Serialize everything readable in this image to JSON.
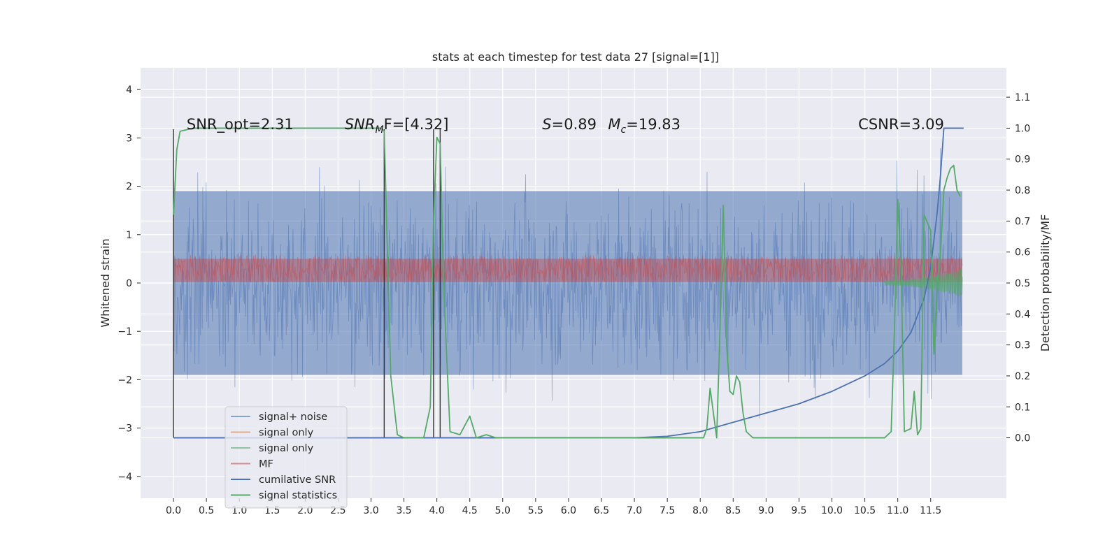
{
  "chart_data": {
    "type": "line",
    "title": "stats at each timestep for test data 27 [signal=[1]]",
    "ylabel": "Whitened strain",
    "ylabel_right": "Detection probability/MF",
    "xlim": [
      -0.5,
      12.65
    ],
    "ylim": [
      -4.45,
      4.45
    ],
    "ylim_right": [
      -0.195,
      1.195
    ],
    "x_ticks": [
      "0.0",
      "0.5",
      "1.0",
      "1.5",
      "2.0",
      "2.5",
      "3.0",
      "3.5",
      "4.0",
      "4.5",
      "5.0",
      "5.5",
      "6.0",
      "6.5",
      "7.0",
      "7.5",
      "8.0",
      "8.5",
      "9.0",
      "9.5",
      "10.0",
      "10.5",
      "11.0",
      "11.5"
    ],
    "y_ticks": [
      "4",
      "3",
      "2",
      "1",
      "0",
      "−1",
      "−2",
      "−3",
      "−4"
    ],
    "y_ticks_right": [
      "1.1",
      "1.0",
      "0.9",
      "0.8",
      "0.7",
      "0.6",
      "0.5",
      "0.4",
      "0.3",
      "0.2",
      "0.1",
      "0.0"
    ],
    "grid": true,
    "legend_position": "lower-left",
    "annotations": [
      {
        "text": "SNR_opt=2.31",
        "x": 0.2,
        "y": 3.18
      },
      {
        "text": "SNR",
        "sub": "M",
        "tail": "F=[4.32]",
        "italic": true,
        "x": 2.6,
        "y": 3.18
      },
      {
        "text": "S",
        "tail": "=0.89",
        "italic": true,
        "x": 5.6,
        "y": 3.18
      },
      {
        "text": "M",
        "sub": "c",
        "tail": "=19.83",
        "italic": true,
        "x": 6.6,
        "y": 3.18
      },
      {
        "text": "CSNR=3.09",
        "x": 10.4,
        "y": 3.18
      }
    ],
    "vertical_markers": [
      0.0,
      3.2,
      3.95,
      4.05
    ],
    "series": [
      {
        "name": "signal+ noise",
        "color": "#4c72b0",
        "axis": "left",
        "kind": "noise-band",
        "approx_envelope": [
          -2.4,
          2.8
        ]
      },
      {
        "name": "signal only",
        "color": "#dd8452",
        "axis": "left",
        "kind": "chirp"
      },
      {
        "name": "signal only",
        "color": "#55a868",
        "axis": "left",
        "kind": "chirp"
      },
      {
        "name": "MF",
        "color": "#c44e52",
        "axis": "left",
        "kind": "noise-band",
        "approx_envelope": [
          0.0,
          0.6
        ]
      },
      {
        "name": "cumilative SNR",
        "color": "#4c72b0",
        "axis": "right",
        "x": [
          0.0,
          7.0,
          7.5,
          8.0,
          8.5,
          9.0,
          9.5,
          10.0,
          10.5,
          10.8,
          11.0,
          11.2,
          11.4,
          11.5,
          11.6,
          11.65,
          11.7,
          11.75,
          12.0
        ],
        "values": [
          0.0,
          0.0,
          0.005,
          0.02,
          0.05,
          0.08,
          0.11,
          0.15,
          0.2,
          0.24,
          0.28,
          0.34,
          0.45,
          0.55,
          0.73,
          0.85,
          1.0,
          1.0,
          1.0
        ]
      },
      {
        "name": "signal statistics",
        "color": "#55a868",
        "axis": "right",
        "x": [
          0.0,
          0.05,
          0.1,
          0.3,
          1.0,
          2.0,
          3.0,
          3.15,
          3.2,
          3.3,
          3.4,
          3.5,
          3.8,
          3.9,
          3.95,
          4.0,
          4.05,
          4.1,
          4.2,
          4.35,
          4.5,
          4.6,
          4.75,
          4.9,
          5.0,
          6.0,
          7.0,
          7.5,
          8.0,
          8.05,
          8.1,
          8.15,
          8.25,
          8.3,
          8.35,
          8.4,
          8.45,
          8.5,
          8.55,
          8.6,
          8.65,
          8.7,
          8.8,
          8.9,
          9.0,
          9.5,
          10.0,
          10.5,
          10.8,
          10.9,
          10.95,
          11.0,
          11.05,
          11.1,
          11.2,
          11.25,
          11.3,
          11.35,
          11.4,
          11.5,
          11.55,
          11.6,
          11.65,
          11.7,
          11.75,
          11.8,
          11.85,
          11.9,
          11.95
        ],
        "values": [
          0.72,
          0.93,
          0.99,
          1.0,
          1.0,
          1.0,
          1.0,
          1.0,
          0.99,
          0.2,
          0.01,
          0.0,
          0.0,
          0.1,
          0.7,
          0.97,
          0.95,
          0.5,
          0.02,
          0.01,
          0.07,
          0.0,
          0.01,
          0.0,
          0.0,
          0.0,
          0.0,
          0.0,
          0.0,
          0.0,
          0.03,
          0.16,
          0.0,
          0.35,
          0.75,
          0.3,
          0.15,
          0.14,
          0.2,
          0.18,
          0.08,
          0.02,
          0.0,
          0.0,
          0.0,
          0.0,
          0.0,
          0.0,
          0.0,
          0.02,
          0.35,
          0.77,
          0.55,
          0.02,
          0.03,
          0.15,
          0.01,
          0.03,
          0.72,
          0.67,
          0.27,
          0.5,
          0.6,
          0.8,
          0.84,
          0.87,
          0.88,
          0.8,
          0.78
        ]
      }
    ]
  }
}
